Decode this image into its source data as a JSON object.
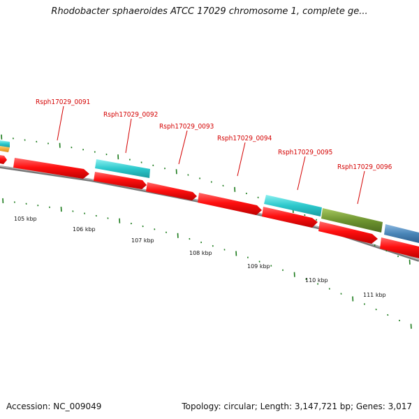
{
  "title": "Rhodobacter sphaeroides ATCC 17029 chromosome 1, complete ge...",
  "accession": "Accession: NC_009049",
  "topology": "Topology: circular; Length: 3,147,721 bp; Genes: 3,017",
  "colors": {
    "forward": "#ff1010",
    "reverse_cyan": "#33d0d0",
    "reverse_olive": "#6e9430",
    "reverse_blue": "#4a86b8",
    "orange": "#f0a020",
    "backbone": "#888888",
    "ticks": "#1a7a1a",
    "label": "#d40000"
  },
  "scale_labels": [
    "105 kbp",
    "106 kbp",
    "107 kbp",
    "108 kbp",
    "109 kbp",
    "110 kbp",
    "111 kbp"
  ],
  "gene_labels": [
    "Rsph17029_0091",
    "Rsph17029_0092",
    "Rsph17029_0093",
    "Rsph17029_0094",
    "Rsph17029_0095",
    "Rsph17029_0096"
  ]
}
